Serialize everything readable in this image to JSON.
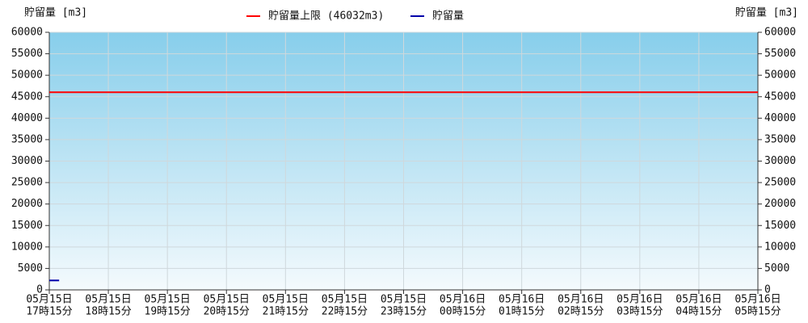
{
  "chart_data": {
    "type": "line",
    "y_label": "貯留量 [m3]",
    "y2_label": "貯留量 [m3]",
    "xlim": [
      "05-15T17:15",
      "05-16T05:15"
    ],
    "xticks": [
      {
        "value": "05-15T17:15",
        "label": [
          "05月15日",
          "17時15分"
        ]
      },
      {
        "value": "05-15T18:15",
        "label": [
          "05月15日",
          "18時15分"
        ]
      },
      {
        "value": "05-15T19:15",
        "label": [
          "05月15日",
          "19時15分"
        ]
      },
      {
        "value": "05-15T20:15",
        "label": [
          "05月15日",
          "20時15分"
        ]
      },
      {
        "value": "05-15T21:15",
        "label": [
          "05月15日",
          "21時15分"
        ]
      },
      {
        "value": "05-15T22:15",
        "label": [
          "05月15日",
          "22時15分"
        ]
      },
      {
        "value": "05-15T23:15",
        "label": [
          "05月15日",
          "23時15分"
        ]
      },
      {
        "value": "05-16T00:15",
        "label": [
          "05月16日",
          "00時15分"
        ]
      },
      {
        "value": "05-16T01:15",
        "label": [
          "05月16日",
          "01時15分"
        ]
      },
      {
        "value": "05-16T02:15",
        "label": [
          "05月16日",
          "02時15分"
        ]
      },
      {
        "value": "05-16T03:15",
        "label": [
          "05月16日",
          "03時15分"
        ]
      },
      {
        "value": "05-16T04:15",
        "label": [
          "05月16日",
          "04時15分"
        ]
      },
      {
        "value": "05-16T05:15",
        "label": [
          "05月16日",
          "05時15分"
        ]
      }
    ],
    "ylim": [
      0,
      60000
    ],
    "yticks": [
      0,
      5000,
      10000,
      15000,
      20000,
      25000,
      30000,
      35000,
      40000,
      45000,
      50000,
      55000,
      60000
    ],
    "y2lim": [
      0,
      60000
    ],
    "y2ticks": [
      0,
      5000,
      10000,
      15000,
      20000,
      25000,
      30000,
      35000,
      40000,
      45000,
      50000,
      55000,
      60000
    ],
    "grid": true,
    "background": [
      "#87ceeb",
      "#f4fafd"
    ],
    "series": [
      {
        "name": "貯留量上限 (46032m3)",
        "color": "#ff0000",
        "x": [
          "05-15T17:15",
          "05-16T05:15"
        ],
        "values": [
          46032,
          46032
        ]
      },
      {
        "name": "貯留量",
        "color": "#0000aa",
        "x": [
          "05-15T17:15",
          "05-15T17:25"
        ],
        "values": [
          2200,
          2200
        ]
      }
    ]
  }
}
